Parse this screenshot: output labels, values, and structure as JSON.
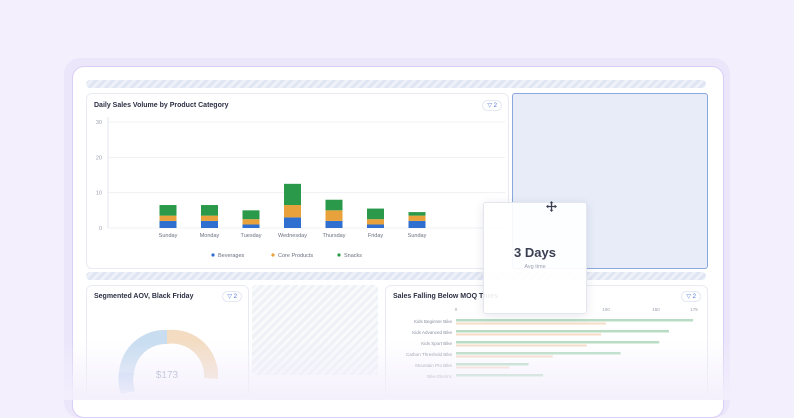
{
  "top_chart": {
    "title": "Daily Sales Volume by Product Category",
    "filter_count": "2",
    "chart_data": {
      "type": "bar",
      "stacked": true,
      "categories": [
        "Sunday",
        "Monday",
        "Tuesday",
        "Wednesday",
        "Thursday",
        "Friday",
        "Sunday"
      ],
      "series": [
        {
          "name": "Beverages",
          "color": "#2f6fd0",
          "values": [
            2,
            2,
            1,
            3,
            2,
            1,
            2
          ]
        },
        {
          "name": "Core Products",
          "color": "#e9a23b",
          "values": [
            1.5,
            1.5,
            1.5,
            3.5,
            3,
            1.5,
            1.5
          ]
        },
        {
          "name": "Snacks",
          "color": "#2a9a4a",
          "values": [
            3,
            3,
            2.5,
            6,
            3,
            3,
            1
          ]
        }
      ],
      "y_ticks": [
        "30",
        "20",
        "10",
        "0"
      ],
      "ylim": [
        0,
        30
      ],
      "grid": true,
      "legend_position": "bottom"
    }
  },
  "drag_card": {
    "value": "3 Days",
    "label": "Avg time",
    "icon": "move-icon"
  },
  "aov_card": {
    "title": "Segmented AOV, Black Friday",
    "filter_count": "2",
    "center_value": "$173",
    "donut_colors": [
      "#c8ddf0",
      "#f3dcc2",
      "#bcd3ef"
    ]
  },
  "moq_card": {
    "title": "Sales Falling Below MOQ Thres",
    "filter_count": "2",
    "axis_ticks": [
      "0",
      "100",
      "150",
      "175"
    ],
    "rows": [
      {
        "label": "Kids Beginner Bike",
        "value": 98,
        "target": 62
      },
      {
        "label": "Kids Advanced Bike",
        "value": 88,
        "target": 60
      },
      {
        "label": "Kids Sport Bike",
        "value": 84,
        "target": 54
      },
      {
        "label": "Carbon Threshold Bike",
        "value": 68,
        "target": 40
      },
      {
        "label": "Mountain Pro Bike",
        "value": 30,
        "target": 22
      },
      {
        "label": "Bike Electric",
        "value": 36,
        "target": 0
      }
    ]
  }
}
